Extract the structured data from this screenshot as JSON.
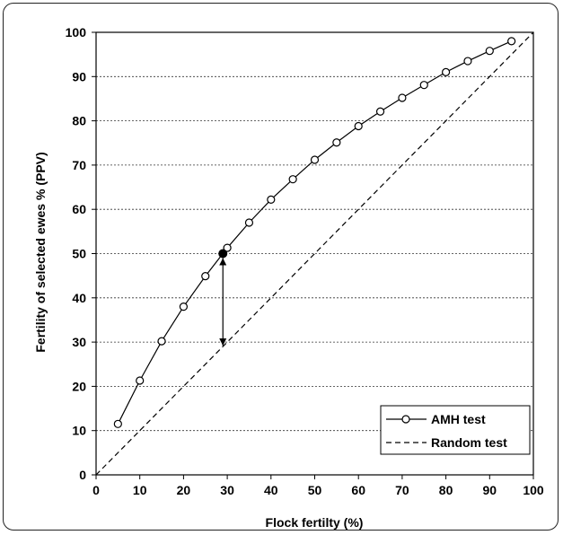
{
  "chart_data": {
    "type": "line",
    "xlabel": "Flock fertilty (%)",
    "ylabel": "Fertility of selected ewes % (PPV)",
    "xlim": [
      0,
      100
    ],
    "ylim": [
      0,
      100
    ],
    "x_ticks": [
      0,
      10,
      20,
      30,
      40,
      50,
      60,
      70,
      80,
      90,
      100
    ],
    "y_ticks": [
      0,
      10,
      20,
      30,
      40,
      50,
      60,
      70,
      80,
      90,
      100
    ],
    "grid": "horizontal dotted",
    "legend_position": "bottom-right",
    "series": [
      {
        "name": "AMH test",
        "style": "solid line with open circle markers",
        "color": "#000000",
        "x": [
          5,
          10,
          15,
          20,
          25,
          30,
          35,
          40,
          45,
          50,
          55,
          60,
          65,
          70,
          75,
          80,
          85,
          90,
          95
        ],
        "y": [
          11.5,
          21.3,
          30.2,
          38,
          44.9,
          51.3,
          57,
          62.2,
          66.8,
          71.2,
          75.1,
          78.8,
          82.1,
          85.2,
          88.1,
          91,
          93.5,
          95.8,
          98
        ]
      },
      {
        "name": "Random test",
        "style": "dashed line",
        "color": "#000000",
        "x": [
          0,
          100
        ],
        "y": [
          0,
          100
        ]
      }
    ],
    "annotations": [
      {
        "type": "filled-point",
        "x": 29,
        "y": 50
      },
      {
        "type": "double-arrow",
        "x": 29,
        "y_from": 29,
        "y_to": 50
      }
    ]
  }
}
